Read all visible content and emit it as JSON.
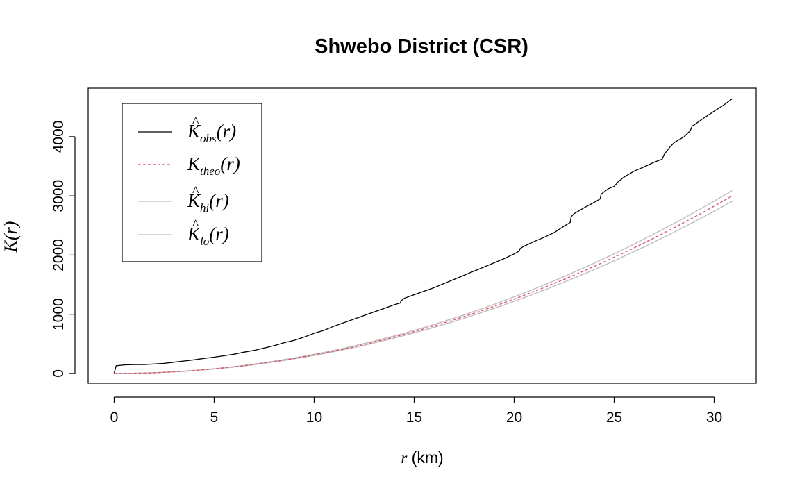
{
  "chart_data": {
    "type": "line",
    "title": "Shwebo District (CSR)",
    "xlabel": {
      "var": "r",
      "unit": "(km)"
    },
    "ylabel": {
      "var": "K",
      "arg": "(r)"
    },
    "xlim": [
      -1.3,
      32.1
    ],
    "ylim": [
      -165,
      4820
    ],
    "xticks": [
      "0",
      "5",
      "10",
      "15",
      "20",
      "25",
      "30"
    ],
    "xtick_values": [
      0,
      5,
      10,
      15,
      20,
      25,
      30
    ],
    "yticks": [
      "0",
      "1000",
      "2000",
      "3000",
      "4000"
    ],
    "ytick_values": [
      0,
      1000,
      2000,
      3000,
      4000
    ],
    "legend": {
      "position": "top-left",
      "entries": [
        {
          "key": "obs",
          "main": "K",
          "sub": "obs",
          "arg": "(r)",
          "hat": true,
          "color": "#000000",
          "dash": ""
        },
        {
          "key": "theo",
          "main": "K",
          "sub": "theo",
          "arg": "(r)",
          "hat": false,
          "color": "#DF536B",
          "dash": "4,3"
        },
        {
          "key": "hi",
          "main": "K",
          "sub": "hi",
          "arg": "(r)",
          "hat": true,
          "color": "#BEBEBE",
          "dash": ""
        },
        {
          "key": "lo",
          "main": "K",
          "sub": "lo",
          "arg": "(r)",
          "hat": true,
          "color": "#BEBEBE",
          "dash": ""
        }
      ]
    },
    "series": [
      {
        "key": "obs",
        "color": "#000000",
        "x": [
          0,
          0.1,
          0.5,
          1,
          1.5,
          2,
          2.5,
          3,
          3.5,
          4,
          4.5,
          5,
          5.5,
          6,
          6.5,
          7,
          7.5,
          8,
          8.5,
          9,
          9.5,
          10,
          10.5,
          11,
          11.5,
          12,
          12.5,
          13,
          13.5,
          14,
          14.3,
          14.35,
          14.5,
          15,
          15.5,
          16,
          16.5,
          17,
          17.5,
          18,
          18.5,
          19,
          19.5,
          20,
          20.25,
          20.3,
          20.5,
          21,
          21.5,
          22,
          22.5,
          22.8,
          22.85,
          23,
          23.5,
          24,
          24.3,
          24.35,
          24.7,
          25,
          25.2,
          25.5,
          26,
          26.5,
          27,
          27.4,
          27.5,
          27.8,
          28,
          28.5,
          28.8,
          28.9,
          29,
          29.5,
          30,
          30.5,
          30.9
        ],
        "y": [
          0,
          130,
          145,
          150,
          150,
          160,
          170,
          190,
          210,
          230,
          255,
          275,
          300,
          325,
          360,
          390,
          430,
          470,
          520,
          560,
          615,
          680,
          730,
          800,
          860,
          920,
          980,
          1040,
          1100,
          1160,
          1190,
          1230,
          1270,
          1330,
          1390,
          1450,
          1520,
          1590,
          1660,
          1730,
          1800,
          1870,
          1940,
          2020,
          2070,
          2110,
          2150,
          2230,
          2300,
          2380,
          2490,
          2550,
          2650,
          2700,
          2800,
          2890,
          2950,
          3030,
          3120,
          3160,
          3240,
          3320,
          3420,
          3490,
          3570,
          3620,
          3700,
          3830,
          3900,
          4000,
          4100,
          4180,
          4200,
          4320,
          4430,
          4540,
          4640
        ]
      },
      {
        "key": "hi",
        "color": "#BEBEBE",
        "formula_scale": 1.03,
        "x_max": 30.9
      },
      {
        "key": "lo",
        "color": "#BEBEBE",
        "formula_scale": 0.97,
        "x_max": 30.9
      },
      {
        "key": "theo",
        "color": "#DF536B",
        "formula_scale": 1.0,
        "x_max": 30.9
      }
    ],
    "grid": false
  }
}
